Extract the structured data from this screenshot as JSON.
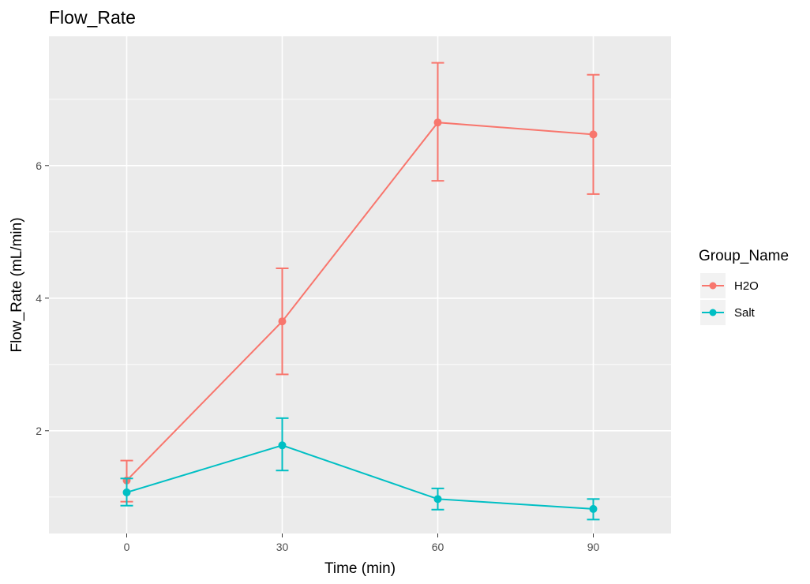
{
  "chart_data": {
    "type": "line",
    "title": "Flow_Rate",
    "xlabel": "Time (min)",
    "ylabel": "Flow_Rate (mL/min)",
    "x": [
      0,
      30,
      60,
      90
    ],
    "x_ticks": [
      "0",
      "30",
      "60",
      "90"
    ],
    "y_ticks": [
      "2",
      "4",
      "6"
    ],
    "xlim": [
      -15,
      105
    ],
    "ylim": [
      0.45,
      7.95
    ],
    "grid": true,
    "error_bars": true,
    "legend": {
      "title": "Group_Name",
      "position": "right"
    },
    "series": [
      {
        "name": "H2O",
        "color": "#F8766D",
        "values": [
          1.25,
          3.65,
          6.65,
          6.47
        ],
        "lower": [
          0.93,
          2.85,
          5.77,
          5.57
        ],
        "upper": [
          1.55,
          4.45,
          7.55,
          7.37
        ]
      },
      {
        "name": "Salt",
        "color": "#00BFC4",
        "values": [
          1.07,
          1.78,
          0.97,
          0.82
        ],
        "lower": [
          0.87,
          1.4,
          0.81,
          0.66
        ],
        "upper": [
          1.28,
          2.19,
          1.13,
          0.97
        ]
      }
    ]
  }
}
